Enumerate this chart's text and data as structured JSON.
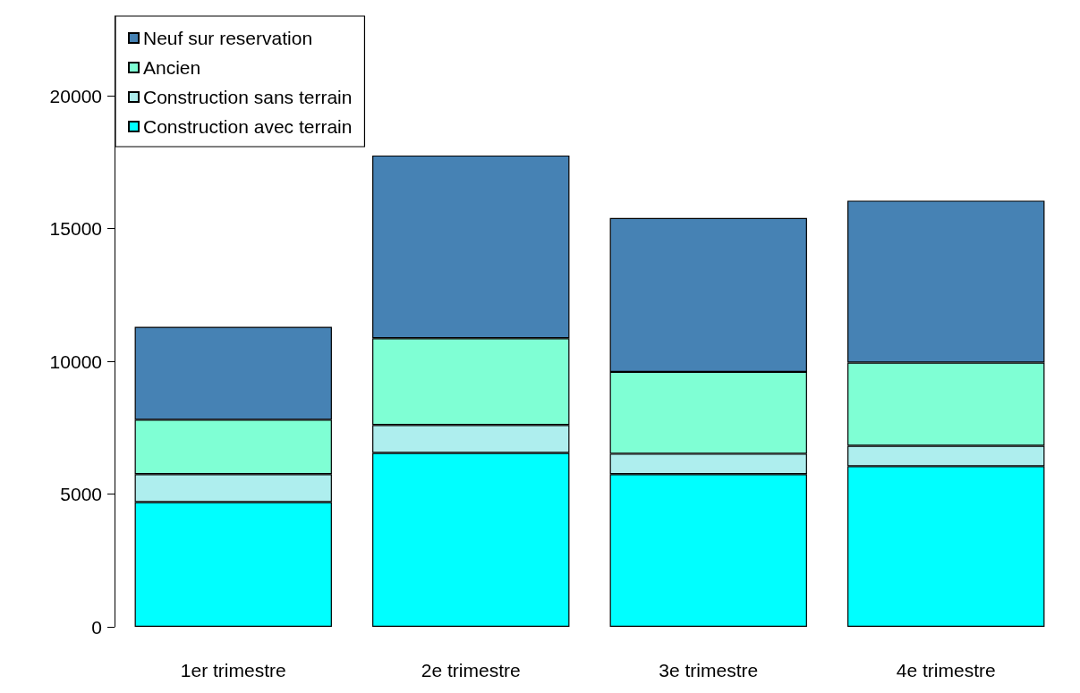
{
  "chart_data": {
    "type": "bar",
    "stacked": true,
    "categories": [
      "1er trimestre",
      "2e trimestre",
      "3e trimestre",
      "4e trimestre"
    ],
    "series": [
      {
        "name": "Construction avec terrain",
        "color": "#00ffff",
        "values": [
          4700,
          6550,
          5750,
          6050
        ]
      },
      {
        "name": "Construction sans terrain",
        "color": "#aeeeee",
        "values": [
          1050,
          1050,
          770,
          770
        ]
      },
      {
        "name": "Ancien",
        "color": "#7fffd4",
        "values": [
          2050,
          3270,
          3080,
          3130
        ]
      },
      {
        "name": "Neuf sur reservation",
        "color": "#4682b4",
        "values": [
          3500,
          6880,
          5800,
          6100
        ]
      }
    ],
    "ylim": [
      0,
      23000
    ],
    "yticks": [
      0,
      5000,
      10000,
      15000,
      20000
    ],
    "grid": false,
    "legend": "top left"
  }
}
